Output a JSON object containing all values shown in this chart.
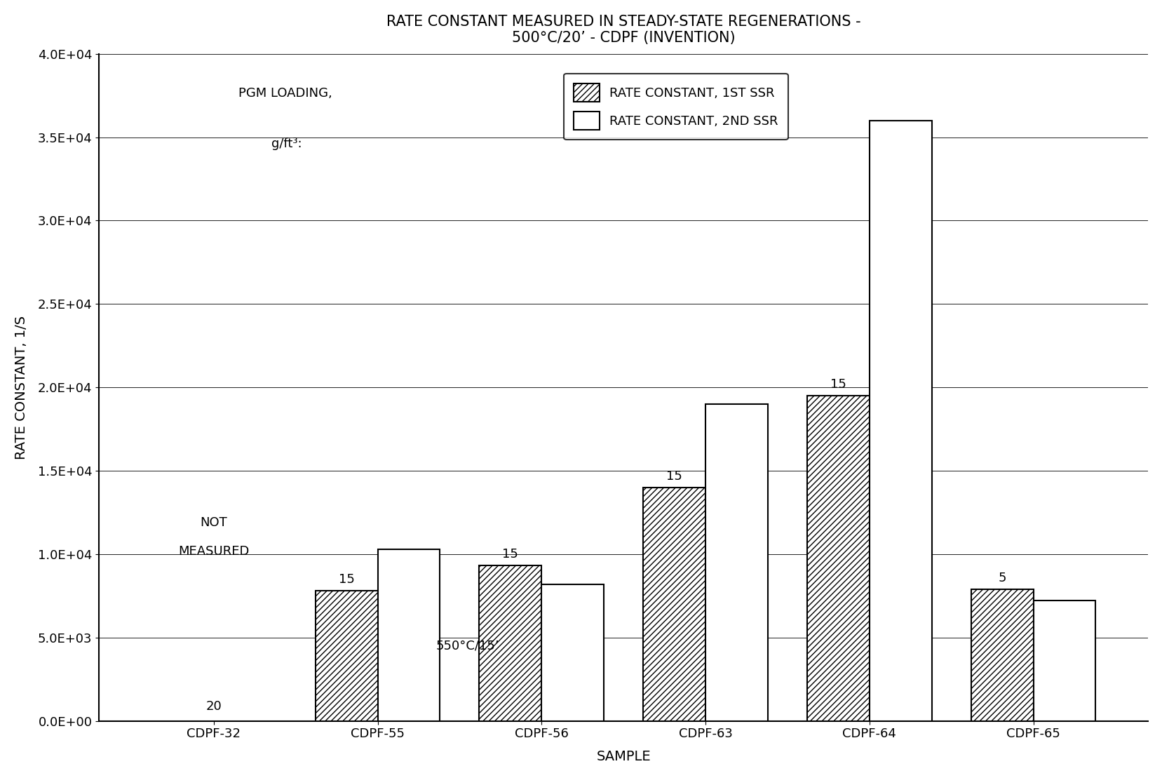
{
  "title_line1": "RATE CONSTANT MEASURED IN STEADY-STATE REGENERATIONS -",
  "title_line2": "500°C/20’ - CDPF (INVENTION)",
  "xlabel": "SAMPLE",
  "ylabel": "RATE CONSTANT, 1/S",
  "categories": [
    "CDPF-32",
    "CDPF-55",
    "CDPF-56",
    "CDPF-63",
    "CDPF-64",
    "CDPF-65"
  ],
  "values_1st": [
    null,
    7800,
    9300,
    14000,
    19500,
    7900
  ],
  "values_2nd": [
    null,
    10300,
    8200,
    19000,
    36000,
    7200
  ],
  "pgm_labels": [
    "20",
    "15",
    "15",
    "15",
    "15",
    "5"
  ],
  "not_measured_label_line1": "NOT",
  "not_measured_label_line2": "MEASURED",
  "note_label": "550°C/15’",
  "pgm_loading_text_line1": "PGM LOADING,",
  "pgm_loading_text_line2": "g/ft³:",
  "legend_1st": "RATE CONSTANT, 1ST SSR",
  "legend_2nd": "RATE CONSTANT, 2ND SSR",
  "ylim": [
    0,
    40000
  ],
  "yticks": [
    0,
    5000,
    10000,
    15000,
    20000,
    25000,
    30000,
    35000,
    40000
  ],
  "ytick_labels": [
    "0.0E+00",
    "5.0E+03",
    "1.0E+04",
    "1.5E+04",
    "2.0E+04",
    "2.5E+04",
    "3.0E+04",
    "3.5E+04",
    "4.0E+04"
  ],
  "bar_width": 0.38,
  "hatch_pattern": "////",
  "bar_color_1st": "white",
  "bar_color_2nd": "white",
  "edge_color": "black",
  "background_color": "white",
  "title_fontsize": 15,
  "axis_label_fontsize": 14,
  "tick_fontsize": 13,
  "annotation_fontsize": 13,
  "legend_fontsize": 13
}
